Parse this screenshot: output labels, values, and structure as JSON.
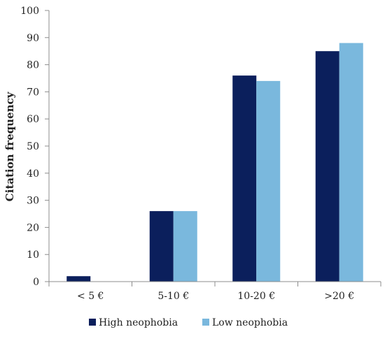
{
  "chart_data": {
    "type": "bar",
    "categories": [
      "< 5 €",
      "5-10 €",
      "10-20 €",
      ">20 €"
    ],
    "series": [
      {
        "name": "High neophobia",
        "values": [
          2,
          26,
          76,
          85
        ],
        "color": "#0b1f5c"
      },
      {
        "name": "Low neophobia",
        "values": [
          0,
          26,
          74,
          88
        ],
        "color": "#7ab8dd"
      }
    ],
    "title": "",
    "xlabel": "",
    "ylabel": "Citation frequency",
    "ylim": [
      0,
      100
    ],
    "yticks": [
      0,
      10,
      20,
      30,
      40,
      50,
      60,
      70,
      80,
      90,
      100
    ],
    "grid": false,
    "legend": "bottom"
  }
}
